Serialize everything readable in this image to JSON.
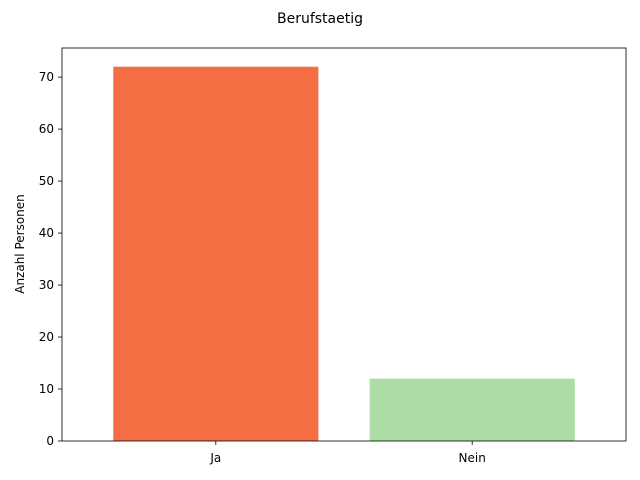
{
  "chart_data": {
    "type": "bar",
    "title": "Berufstaetig",
    "xlabel": "",
    "ylabel": "Anzahl Personen",
    "categories": [
      "Ja",
      "Nein"
    ],
    "values": [
      72,
      12
    ],
    "colors": [
      "#f46d43",
      "#abdda4"
    ],
    "ylim": [
      0,
      75.6
    ],
    "yticks": [
      0,
      10,
      20,
      30,
      40,
      50,
      60,
      70
    ],
    "grid": false,
    "legend": "none"
  }
}
